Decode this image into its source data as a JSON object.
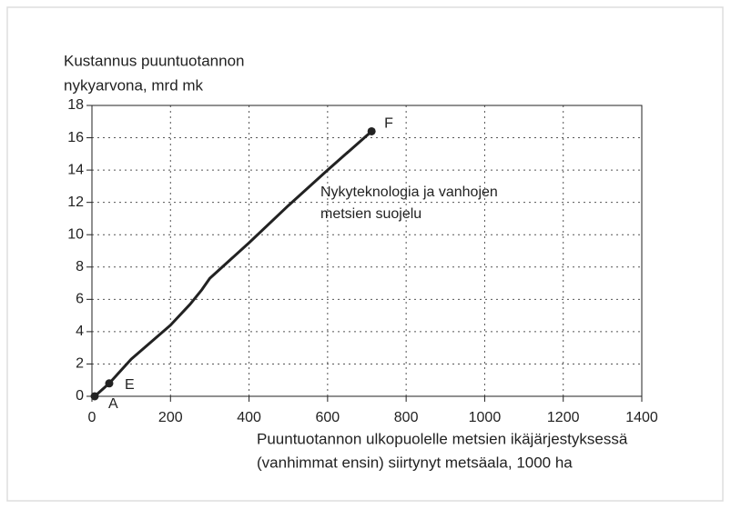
{
  "chart_data": {
    "type": "line",
    "ylabel": [
      "Kustannus puuntuotannon",
      "nykyarvona, mrd mk"
    ],
    "xlabel": [
      "Puuntuotannon ulkopuolelle metsien ikäjärjestyksessä",
      "(vanhimmat ensin) siirtynyt metsäala, 1000 ha"
    ],
    "annotation": [
      "Nykyteknologia ja vanhojen",
      "metsien suojelu"
    ],
    "series": [
      {
        "color": "#222222",
        "x": [
          7,
          44,
          100,
          200,
          250,
          280,
          300,
          400,
          500,
          600,
          712
        ],
        "values": [
          0,
          0.8,
          2.3,
          4.4,
          5.7,
          6.6,
          7.3,
          9.5,
          11.8,
          14.0,
          16.4
        ]
      }
    ],
    "points": [
      {
        "label": "A",
        "x": 7,
        "y": 0
      },
      {
        "label": "E",
        "x": 44,
        "y": 0.8
      },
      {
        "label": "F",
        "x": 712,
        "y": 16.4
      }
    ],
    "xlim": [
      0,
      1400
    ],
    "ylim": [
      0,
      18
    ],
    "xticks": [
      0,
      200,
      400,
      600,
      800,
      1000,
      1200,
      1400
    ],
    "yticks": [
      0,
      2,
      4,
      6,
      8,
      10,
      12,
      14,
      16,
      18
    ],
    "grid": true
  }
}
